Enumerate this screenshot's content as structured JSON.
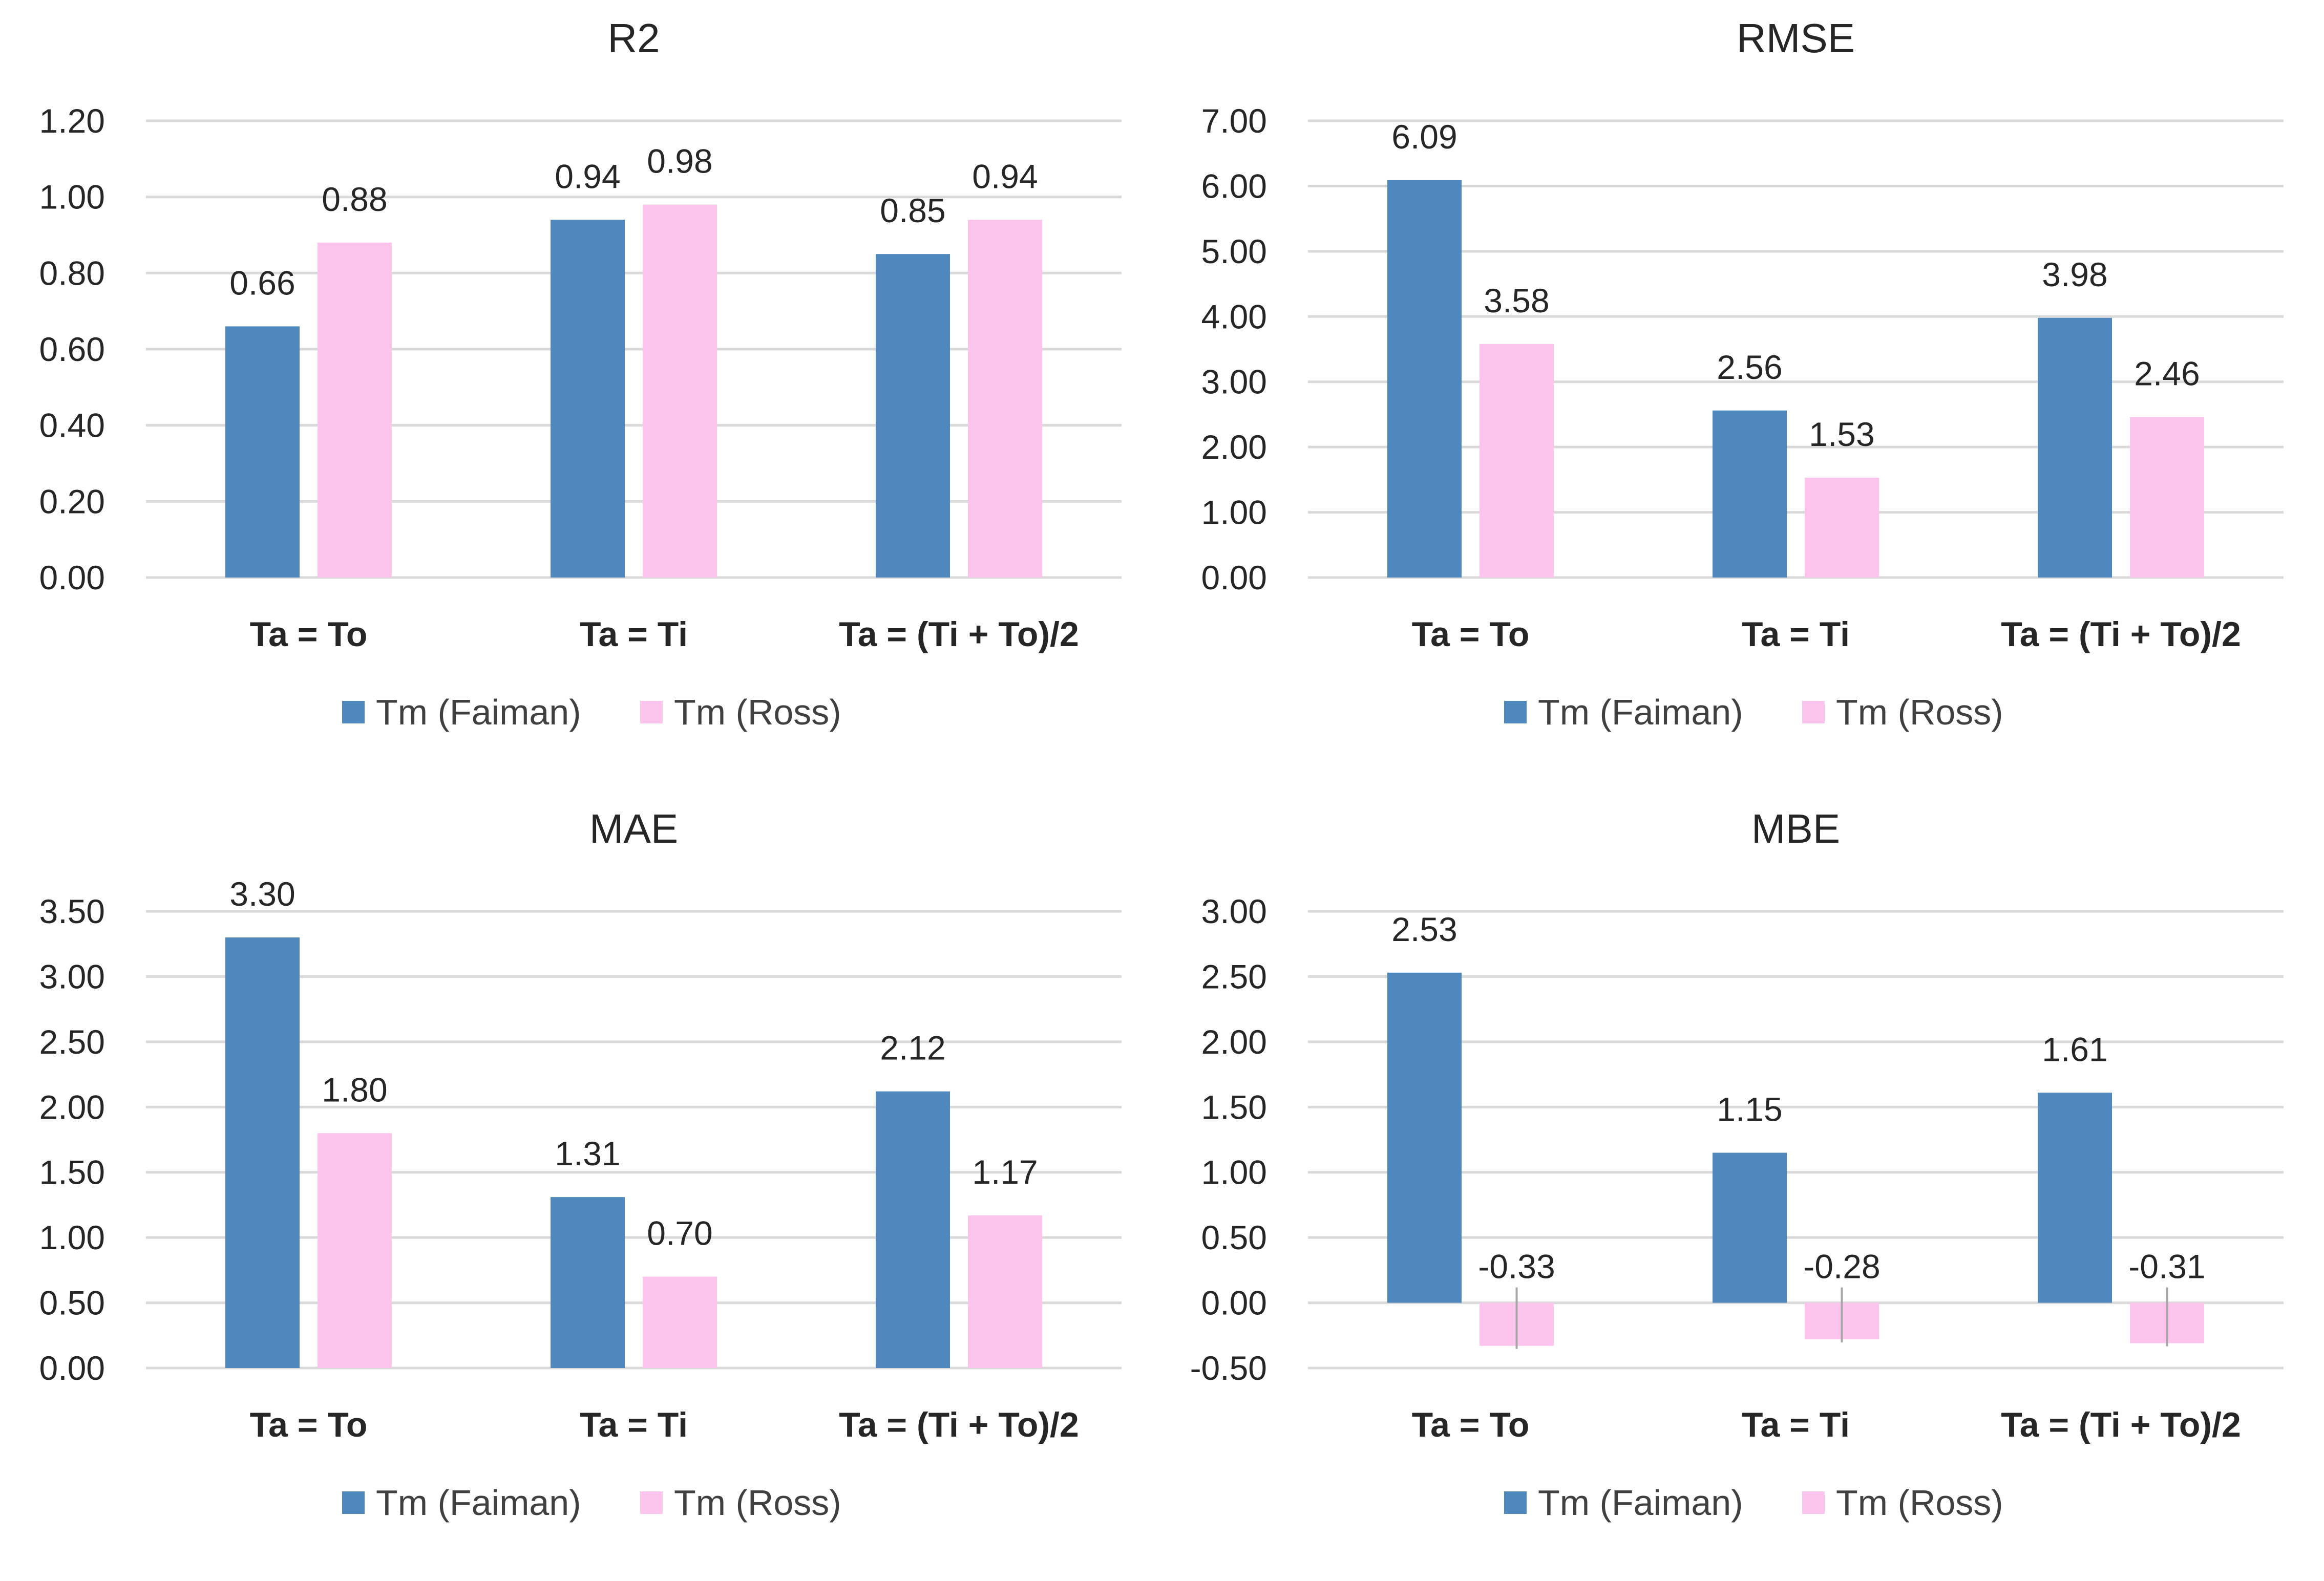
{
  "chart_data": [
    {
      "type": "bar",
      "title": "R2",
      "categories": [
        "Ta = To",
        "Ta = Ti",
        "Ta = (Ti + To)/2"
      ],
      "series": [
        {
          "name": "Tm (Faiman)",
          "values": [
            0.66,
            0.94,
            0.85
          ],
          "labels": [
            "0.66",
            "0.94",
            "0.85"
          ]
        },
        {
          "name": "Tm (Ross)",
          "values": [
            0.88,
            0.98,
            0.94
          ],
          "labels": [
            "0.88",
            "0.98",
            "0.94"
          ]
        }
      ],
      "yticks": [
        "0.00",
        "0.20",
        "0.40",
        "0.60",
        "0.80",
        "1.00",
        "1.20"
      ],
      "ylim": [
        0,
        1.2
      ],
      "xlabel": "",
      "ylabel": "",
      "grid": true,
      "legend": "bottom"
    },
    {
      "type": "bar",
      "title": "RMSE",
      "categories": [
        "Ta = To",
        "Ta = Ti",
        "Ta = (Ti + To)/2"
      ],
      "series": [
        {
          "name": "Tm (Faiman)",
          "values": [
            6.09,
            2.56,
            3.98
          ],
          "labels": [
            "6.09",
            "2.56",
            "3.98"
          ]
        },
        {
          "name": "Tm (Ross)",
          "values": [
            3.58,
            1.53,
            2.46
          ],
          "labels": [
            "3.58",
            "1.53",
            "2.46"
          ]
        }
      ],
      "yticks": [
        "0.00",
        "1.00",
        "2.00",
        "3.00",
        "4.00",
        "5.00",
        "6.00",
        "7.00"
      ],
      "ylim": [
        0,
        7
      ],
      "xlabel": "",
      "ylabel": "",
      "grid": true,
      "legend": "bottom"
    },
    {
      "type": "bar",
      "title": "MAE",
      "categories": [
        "Ta = To",
        "Ta = Ti",
        "Ta = (Ti + To)/2"
      ],
      "series": [
        {
          "name": "Tm (Faiman)",
          "values": [
            3.3,
            1.31,
            2.12
          ],
          "labels": [
            "3.30",
            "1.31",
            "2.12"
          ]
        },
        {
          "name": "Tm (Ross)",
          "values": [
            1.8,
            0.7,
            1.17
          ],
          "labels": [
            "1.80",
            "0.70",
            "1.17"
          ]
        }
      ],
      "yticks": [
        "0.00",
        "0.50",
        "1.00",
        "1.50",
        "2.00",
        "2.50",
        "3.00",
        "3.50"
      ],
      "ylim": [
        0,
        3.5
      ],
      "xlabel": "",
      "ylabel": "",
      "grid": true,
      "legend": "bottom"
    },
    {
      "type": "bar",
      "title": "MBE",
      "categories": [
        "Ta = To",
        "Ta = Ti",
        "Ta = (Ti + To)/2"
      ],
      "series": [
        {
          "name": "Tm (Faiman)",
          "values": [
            2.53,
            1.15,
            1.61
          ],
          "labels": [
            "2.53",
            "1.15",
            "1.61"
          ]
        },
        {
          "name": "Tm (Ross)",
          "values": [
            -0.33,
            -0.28,
            -0.31
          ],
          "labels": [
            "-0.33",
            "-0.28",
            "-0.31"
          ]
        }
      ],
      "yticks": [
        "-0.50",
        "0.00",
        "0.50",
        "1.00",
        "1.50",
        "2.00",
        "2.50",
        "3.00"
      ],
      "ylim": [
        -0.5,
        3
      ],
      "xlabel": "",
      "ylabel": "",
      "grid": true,
      "legend": "bottom"
    }
  ],
  "colors": {
    "faiman": "#4f88bc",
    "ross": "#fdc4ee",
    "grid": "#d9d9d9",
    "text": "#262626"
  }
}
